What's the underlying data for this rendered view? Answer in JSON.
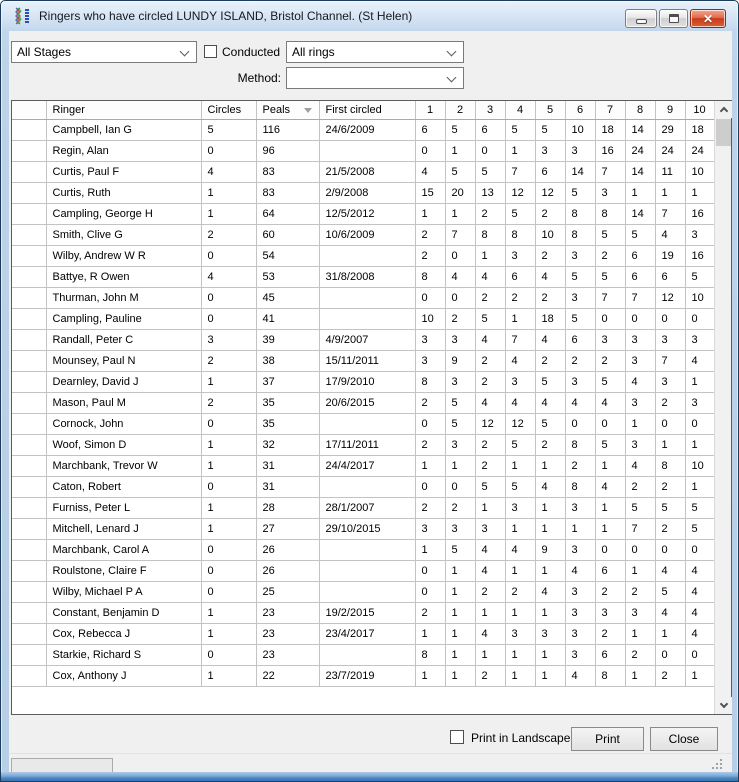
{
  "window": {
    "title": "Ringers who have circled LUNDY ISLAND, Bristol Channel. (St Helen)",
    "close_glyph": "✕"
  },
  "filters": {
    "stages": {
      "value": "All Stages"
    },
    "conducted": {
      "label": "Conducted",
      "checked": false
    },
    "rings": {
      "value": "All rings"
    },
    "method": {
      "label": "Method:",
      "value": ""
    }
  },
  "table": {
    "columns": [
      "",
      "Ringer",
      "Circles",
      "Peals",
      "First circled",
      "1",
      "2",
      "3",
      "4",
      "5",
      "6",
      "7",
      "8",
      "9",
      "10"
    ],
    "sorted_by": "Peals",
    "sort_direction": "descending",
    "rows": [
      {
        "ringer": "Campbell, Ian G",
        "circles": "5",
        "peals": "116",
        "first_circled": "24/6/2009",
        "bells": [
          "6",
          "5",
          "6",
          "5",
          "5",
          "10",
          "18",
          "14",
          "29",
          "18"
        ]
      },
      {
        "ringer": "Regin, Alan",
        "circles": "0",
        "peals": "96",
        "first_circled": "",
        "bells": [
          "0",
          "1",
          "0",
          "1",
          "3",
          "3",
          "16",
          "24",
          "24",
          "24"
        ]
      },
      {
        "ringer": "Curtis, Paul F",
        "circles": "4",
        "peals": "83",
        "first_circled": "21/5/2008",
        "bells": [
          "4",
          "5",
          "5",
          "7",
          "6",
          "14",
          "7",
          "14",
          "11",
          "10"
        ]
      },
      {
        "ringer": "Curtis, Ruth",
        "circles": "1",
        "peals": "83",
        "first_circled": "2/9/2008",
        "bells": [
          "15",
          "20",
          "13",
          "12",
          "12",
          "5",
          "3",
          "1",
          "1",
          "1"
        ]
      },
      {
        "ringer": "Campling, George H",
        "circles": "1",
        "peals": "64",
        "first_circled": "12/5/2012",
        "bells": [
          "1",
          "1",
          "2",
          "5",
          "2",
          "8",
          "8",
          "14",
          "7",
          "16"
        ]
      },
      {
        "ringer": "Smith, Clive G",
        "circles": "2",
        "peals": "60",
        "first_circled": "10/6/2009",
        "bells": [
          "2",
          "7",
          "8",
          "8",
          "10",
          "8",
          "5",
          "5",
          "4",
          "3"
        ]
      },
      {
        "ringer": "Wilby, Andrew W R",
        "circles": "0",
        "peals": "54",
        "first_circled": "",
        "bells": [
          "2",
          "0",
          "1",
          "3",
          "2",
          "3",
          "2",
          "6",
          "19",
          "16"
        ]
      },
      {
        "ringer": "Battye, R Owen",
        "circles": "4",
        "peals": "53",
        "first_circled": "31/8/2008",
        "bells": [
          "8",
          "4",
          "4",
          "6",
          "4",
          "5",
          "5",
          "6",
          "6",
          "5"
        ]
      },
      {
        "ringer": "Thurman, John M",
        "circles": "0",
        "peals": "45",
        "first_circled": "",
        "bells": [
          "0",
          "0",
          "2",
          "2",
          "2",
          "3",
          "7",
          "7",
          "12",
          "10"
        ]
      },
      {
        "ringer": "Campling, Pauline",
        "circles": "0",
        "peals": "41",
        "first_circled": "",
        "bells": [
          "10",
          "2",
          "5",
          "1",
          "18",
          "5",
          "0",
          "0",
          "0",
          "0"
        ]
      },
      {
        "ringer": "Randall, Peter C",
        "circles": "3",
        "peals": "39",
        "first_circled": "4/9/2007",
        "bells": [
          "3",
          "3",
          "4",
          "7",
          "4",
          "6",
          "3",
          "3",
          "3",
          "3"
        ]
      },
      {
        "ringer": "Mounsey, Paul N",
        "circles": "2",
        "peals": "38",
        "first_circled": "15/11/2011",
        "bells": [
          "3",
          "9",
          "2",
          "4",
          "2",
          "2",
          "2",
          "3",
          "7",
          "4"
        ]
      },
      {
        "ringer": "Dearnley, David J",
        "circles": "1",
        "peals": "37",
        "first_circled": "17/9/2010",
        "bells": [
          "8",
          "3",
          "2",
          "3",
          "5",
          "3",
          "5",
          "4",
          "3",
          "1"
        ]
      },
      {
        "ringer": "Mason, Paul M",
        "circles": "2",
        "peals": "35",
        "first_circled": "20/6/2015",
        "bells": [
          "2",
          "5",
          "4",
          "4",
          "4",
          "4",
          "4",
          "3",
          "2",
          "3"
        ]
      },
      {
        "ringer": "Cornock, John",
        "circles": "0",
        "peals": "35",
        "first_circled": "",
        "bells": [
          "0",
          "5",
          "12",
          "12",
          "5",
          "0",
          "0",
          "1",
          "0",
          "0"
        ]
      },
      {
        "ringer": "Woof, Simon D",
        "circles": "1",
        "peals": "32",
        "first_circled": "17/11/2011",
        "bells": [
          "2",
          "3",
          "2",
          "5",
          "2",
          "8",
          "5",
          "3",
          "1",
          "1"
        ]
      },
      {
        "ringer": "Marchbank, Trevor W",
        "circles": "1",
        "peals": "31",
        "first_circled": "24/4/2017",
        "bells": [
          "1",
          "1",
          "2",
          "1",
          "1",
          "2",
          "1",
          "4",
          "8",
          "10"
        ]
      },
      {
        "ringer": "Caton, Robert",
        "circles": "0",
        "peals": "31",
        "first_circled": "",
        "bells": [
          "0",
          "0",
          "5",
          "5",
          "4",
          "8",
          "4",
          "2",
          "2",
          "1"
        ]
      },
      {
        "ringer": "Furniss, Peter L",
        "circles": "1",
        "peals": "28",
        "first_circled": "28/1/2007",
        "bells": [
          "2",
          "2",
          "1",
          "3",
          "1",
          "3",
          "1",
          "5",
          "5",
          "5"
        ]
      },
      {
        "ringer": "Mitchell, Lenard J",
        "circles": "1",
        "peals": "27",
        "first_circled": "29/10/2015",
        "bells": [
          "3",
          "3",
          "3",
          "1",
          "1",
          "1",
          "1",
          "7",
          "2",
          "5"
        ]
      },
      {
        "ringer": "Marchbank, Carol A",
        "circles": "0",
        "peals": "26",
        "first_circled": "",
        "bells": [
          "1",
          "5",
          "4",
          "4",
          "9",
          "3",
          "0",
          "0",
          "0",
          "0"
        ]
      },
      {
        "ringer": "Roulstone, Claire F",
        "circles": "0",
        "peals": "26",
        "first_circled": "",
        "bells": [
          "0",
          "1",
          "4",
          "1",
          "1",
          "4",
          "6",
          "1",
          "4",
          "4"
        ]
      },
      {
        "ringer": "Wilby, Michael P A",
        "circles": "0",
        "peals": "25",
        "first_circled": "",
        "bells": [
          "0",
          "1",
          "2",
          "2",
          "4",
          "3",
          "2",
          "2",
          "5",
          "4"
        ]
      },
      {
        "ringer": "Constant, Benjamin D",
        "circles": "1",
        "peals": "23",
        "first_circled": "19/2/2015",
        "bells": [
          "2",
          "1",
          "1",
          "1",
          "1",
          "3",
          "3",
          "3",
          "4",
          "4"
        ]
      },
      {
        "ringer": "Cox, Rebecca J",
        "circles": "1",
        "peals": "23",
        "first_circled": "23/4/2017",
        "bells": [
          "1",
          "1",
          "4",
          "3",
          "3",
          "3",
          "2",
          "1",
          "1",
          "4"
        ]
      },
      {
        "ringer": "Starkie, Richard S",
        "circles": "0",
        "peals": "23",
        "first_circled": "",
        "bells": [
          "8",
          "1",
          "1",
          "1",
          "1",
          "3",
          "6",
          "2",
          "0",
          "0"
        ]
      },
      {
        "ringer": "Cox, Anthony J",
        "circles": "1",
        "peals": "22",
        "first_circled": "23/7/2019",
        "bells": [
          "1",
          "1",
          "2",
          "1",
          "1",
          "4",
          "8",
          "1",
          "2",
          "1"
        ]
      }
    ]
  },
  "footer": {
    "print_in_landscape": {
      "label": "Print in Landscape",
      "checked": false
    },
    "print_button": "Print",
    "close_button": "Close"
  },
  "colors": {
    "frame_blue": "#bdd3e8",
    "close_button_red": "#c93b1d",
    "accent_bottom_blue": "#4484c0",
    "grid_line": "#c3c3c3"
  }
}
